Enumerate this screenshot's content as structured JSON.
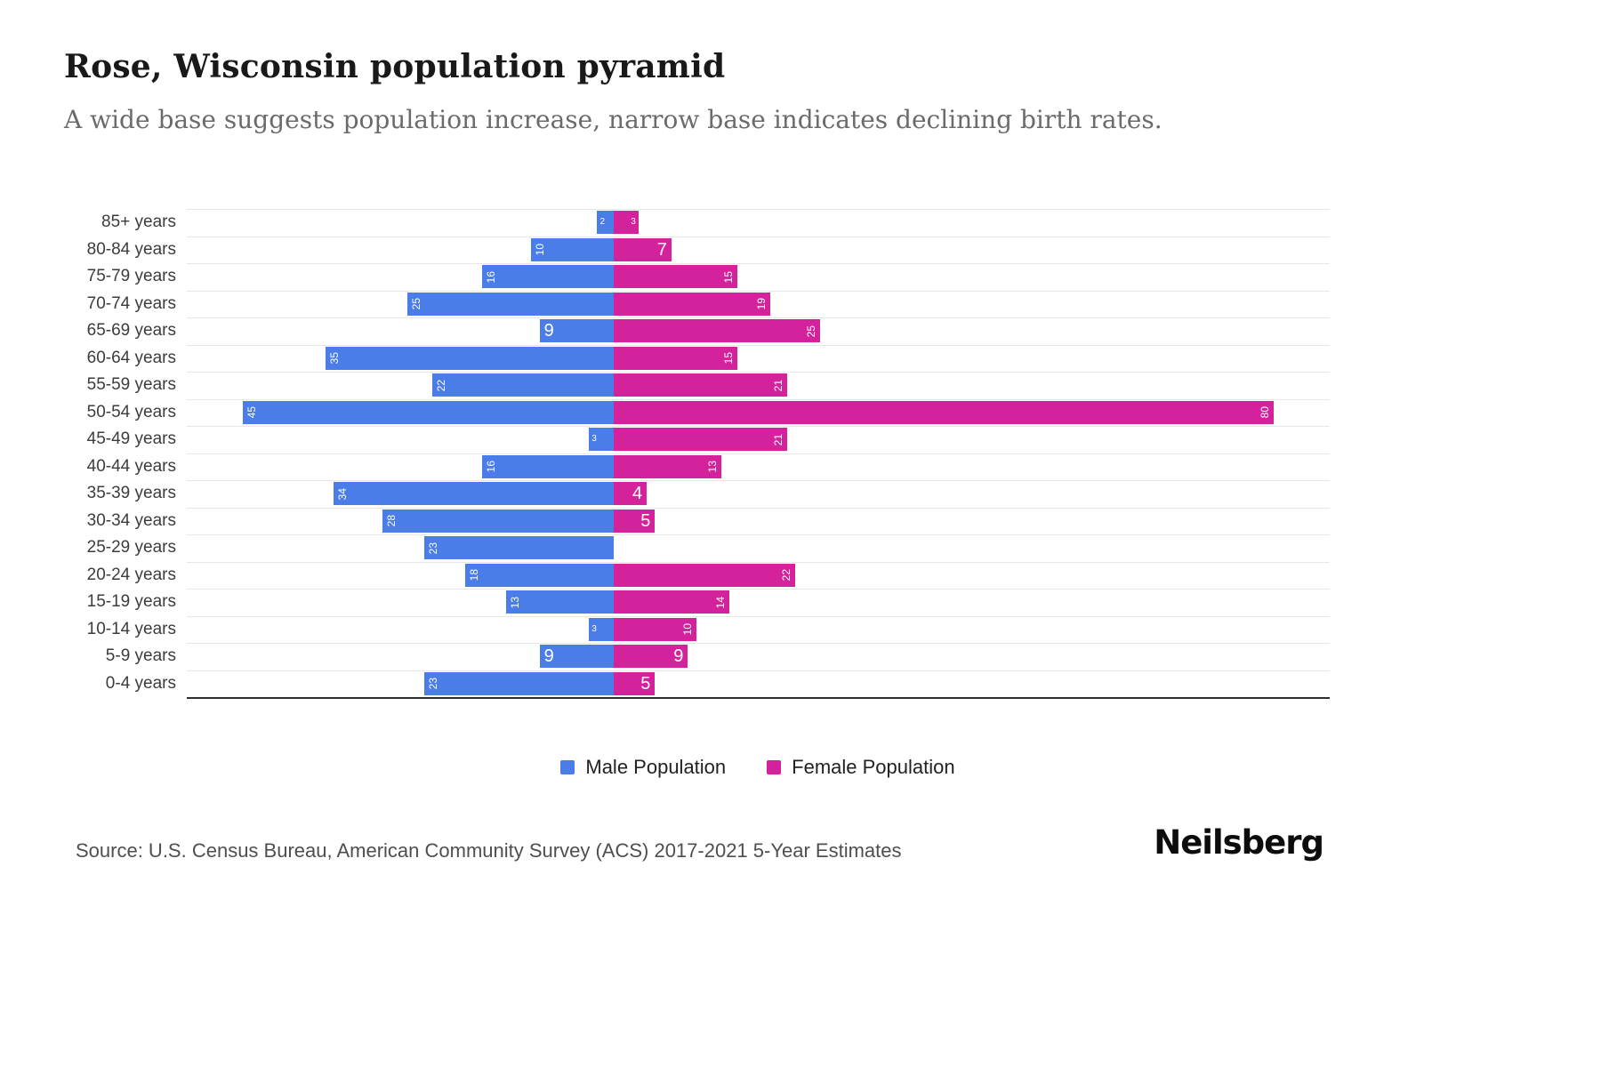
{
  "header": {
    "title": "Rose, Wisconsin population pyramid",
    "subtitle": "A wide base suggests population increase, narrow base indicates declining birth rates."
  },
  "chart_data": {
    "type": "bar",
    "variant": "population-pyramid",
    "grid": "category gridlines on, horizontal",
    "legend_position": "bottom-center",
    "value_axis_ticks_visible": false,
    "xlim_estimate": [
      -52,
      87
    ],
    "categories": [
      "85+ years",
      "80-84 years",
      "75-79 years",
      "70-74 years",
      "65-69 years",
      "60-64 years",
      "55-59 years",
      "50-54 years",
      "45-49 years",
      "40-44 years",
      "35-39 years",
      "30-34 years",
      "25-29 years",
      "20-24 years",
      "15-19 years",
      "10-14 years",
      "5-9 years",
      "0-4 years"
    ],
    "series": [
      {
        "name": "Male Population",
        "side": "left",
        "color": "#4a7de8",
        "values": [
          2,
          10,
          16,
          25,
          9,
          35,
          22,
          45,
          3,
          16,
          34,
          28,
          23,
          18,
          13,
          3,
          9,
          23
        ]
      },
      {
        "name": "Female Population",
        "side": "right",
        "color": "#d4219c",
        "values": [
          3,
          7,
          15,
          19,
          25,
          15,
          21,
          80,
          21,
          13,
          4,
          5,
          0,
          22,
          14,
          10,
          9,
          5
        ]
      }
    ]
  },
  "footer": {
    "source": "Source: U.S. Census Bureau, American Community Survey (ACS) 2017-2021 5-Year Estimates",
    "brand": "Neilsberg"
  }
}
